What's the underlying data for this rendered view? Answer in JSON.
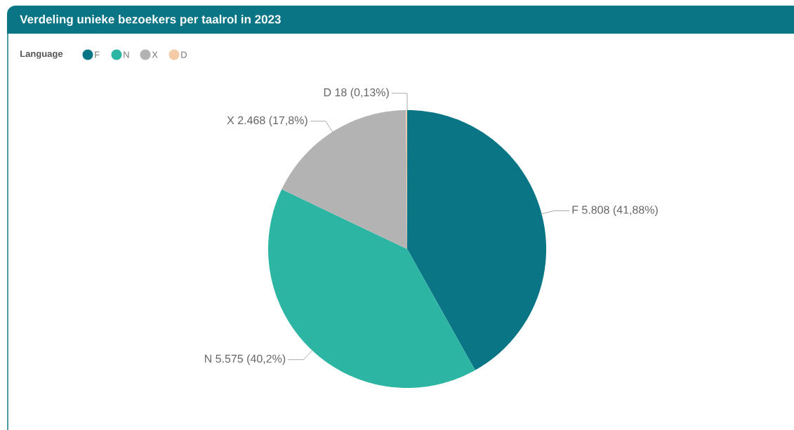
{
  "chart_data": {
    "type": "pie",
    "title": "Verdeling unieke bezoekers per taalrol in 2023",
    "legend_title": "Language",
    "legend": "top left",
    "categories": [
      "F",
      "N",
      "X",
      "D"
    ],
    "values": [
      5808,
      5575,
      2468,
      18
    ],
    "colors": [
      "#0a7585",
      "#2bb5a2",
      "#b3b3b3",
      "#f5cba7"
    ],
    "value_labels": [
      "F 5.808 (41,88%)",
      "N 5.575 (40,2%)",
      "X 2.468 (17,8%)",
      "D 18 (0,13%)"
    ]
  }
}
